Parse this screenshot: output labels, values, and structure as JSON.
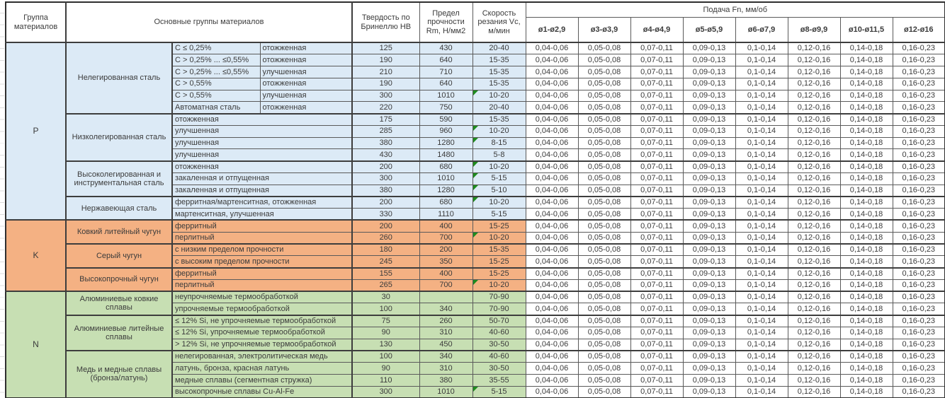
{
  "header": {
    "col_group": "Группа материалов",
    "col_main": "Основные группы материалов",
    "col_hb": "Твердость по Бринеллю HB",
    "col_rm": "Предел прочности Rm, Н/мм2",
    "col_vc": "Скорость резания Vc, м/мин",
    "feed_title": "Подача Fn, мм/об",
    "feed_cols": [
      "ø1-ø2,9",
      "ø3-ø3,9",
      "ø4-ø4,9",
      "ø5-ø5,9",
      "ø6-ø7,9",
      "ø8-ø9,9",
      "ø10-ø11,5",
      "ø12-ø16"
    ]
  },
  "feed_values": [
    "0,04-0,06",
    "0,05-0,08",
    "0,07-0,11",
    "0,09-0,13",
    "0,1-0,14",
    "0,12-0,16",
    "0,14-0,18",
    "0,16-0,23"
  ],
  "colors": {
    "group_P": "#dceaf6",
    "group_K": "#f4b183",
    "group_N": "#c7dfb3",
    "flag_green": "#1e8c1e",
    "feed_cell": "#ffffff"
  },
  "groups": [
    {
      "code": "P",
      "color": "#dceaf6",
      "subgroups": [
        {
          "name": "Нелегированная сталь",
          "rows": [
            {
              "detail": "C ≤ 0,25%",
              "detail2": "отожженная",
              "hb": "125",
              "rm": "430",
              "vc": "20-40",
              "flag": false
            },
            {
              "detail": "C > 0,25% ... ≤0,55%",
              "detail2": "отожженная",
              "hb": "190",
              "rm": "640",
              "vc": "15-35",
              "flag": false
            },
            {
              "detail": "C > 0,25% ... ≤0,55%",
              "detail2": "улучшенная",
              "hb": "210",
              "rm": "710",
              "vc": "15-35",
              "flag": false
            },
            {
              "detail": "C > 0,55%",
              "detail2": "отожженная",
              "hb": "190",
              "rm": "640",
              "vc": "15-35",
              "flag": false
            },
            {
              "detail": "C > 0,55%",
              "detail2": "улучшенная",
              "hb": "300",
              "rm": "1010",
              "vc": "10-20",
              "flag": true
            },
            {
              "detail": "Автоматная сталь",
              "detail2": "отожженная",
              "hb": "220",
              "rm": "750",
              "vc": "20-40",
              "flag": false
            }
          ]
        },
        {
          "name": "Низколегированная сталь",
          "rows": [
            {
              "detail": "отожженная",
              "hb": "175",
              "rm": "590",
              "vc": "15-35",
              "flag": false
            },
            {
              "detail": "улучшенная",
              "hb": "285",
              "rm": "960",
              "vc": "10-20",
              "flag": true
            },
            {
              "detail": "улучшенная",
              "hb": "380",
              "rm": "1280",
              "vc": "8-15",
              "flag": true
            },
            {
              "detail": "улучшенная",
              "hb": "430",
              "rm": "1480",
              "vc": "5-8",
              "flag": false
            }
          ]
        },
        {
          "name": "Высоколегированная и инструментальная сталь",
          "rows": [
            {
              "detail": "отожженная",
              "hb": "200",
              "rm": "680",
              "vc": "10-20",
              "flag": true
            },
            {
              "detail": "закаленная и отпущенная",
              "hb": "300",
              "rm": "1010",
              "vc": "5-15",
              "flag": true
            },
            {
              "detail": "закаленная и отпущенная",
              "hb": "380",
              "rm": "1280",
              "vc": "5-10",
              "flag": true
            }
          ]
        },
        {
          "name": "Нержавеющая сталь",
          "rows": [
            {
              "detail": "ферритная/мартенситная, отожженная",
              "hb": "200",
              "rm": "680",
              "vc": "10-20",
              "flag": true
            },
            {
              "detail": "мартенситная, улучшенная",
              "hb": "330",
              "rm": "1110",
              "vc": "5-15",
              "flag": false
            }
          ]
        }
      ]
    },
    {
      "code": "K",
      "color": "#f4b183",
      "subgroups": [
        {
          "name": "Ковкий литейный чугун",
          "rows": [
            {
              "detail": "ферритный",
              "hb": "200",
              "rm": "400",
              "vc": "15-25",
              "flag": false
            },
            {
              "detail": "перлитный",
              "hb": "260",
              "rm": "700",
              "vc": "10-20",
              "flag": true
            }
          ]
        },
        {
          "name": "Серый чугун",
          "rows": [
            {
              "detail": "с низким пределом прочности",
              "hb": "180",
              "rm": "200",
              "vc": "15-35",
              "flag": false
            },
            {
              "detail": "с высоким пределом прочности",
              "hb": "245",
              "rm": "350",
              "vc": "15-25",
              "flag": false
            }
          ]
        },
        {
          "name": "Высокопрочный чугун",
          "rows": [
            {
              "detail": "ферритный",
              "hb": "155",
              "rm": "400",
              "vc": "15-25",
              "flag": false
            },
            {
              "detail": "перлитный",
              "hb": "265",
              "rm": "700",
              "vc": "10-20",
              "flag": true
            }
          ]
        }
      ]
    },
    {
      "code": "N",
      "color": "#c7dfb3",
      "subgroups": [
        {
          "name": "Алюминиевые ковкие сплавы",
          "rows": [
            {
              "detail": "неупрочняемые термообработкой",
              "hb": "30",
              "rm": "",
              "vc": "70-90",
              "flag": false
            },
            {
              "detail": "упрочняемые термообработкой",
              "hb": "100",
              "rm": "340",
              "vc": "70-90",
              "flag": false
            }
          ]
        },
        {
          "name": "Алюминиевые литейные сплавы",
          "rows": [
            {
              "detail": "≤ 12% Si, не упрочняемые термообработкой",
              "hb": "75",
              "rm": "260",
              "vc": "50-70",
              "flag": false
            },
            {
              "detail": "≤ 12% Si, упрочняемые термообработкой",
              "hb": "90",
              "rm": "310",
              "vc": "40-60",
              "flag": false
            },
            {
              "detail": "> 12% Si, не упрочняемые термообработкой",
              "hb": "130",
              "rm": "450",
              "vc": "30-50",
              "flag": false
            }
          ]
        },
        {
          "name": "Медь и медные сплавы (бронза/латунь)",
          "rows": [
            {
              "detail": "нелегированная, электролитическая медь",
              "hb": "100",
              "rm": "340",
              "vc": "40-60",
              "flag": false
            },
            {
              "detail": "латунь, бронза, красная латунь",
              "hb": "90",
              "rm": "310",
              "vc": "30-50",
              "flag": false
            },
            {
              "detail": "медные сплавы (сегментная стружка)",
              "hb": "110",
              "rm": "380",
              "vc": "35-55",
              "flag": false
            },
            {
              "detail": "высокопрочные сплавы Cu-Al-Fe",
              "hb": "300",
              "rm": "1010",
              "vc": "5-15",
              "flag": true
            }
          ]
        }
      ]
    }
  ]
}
